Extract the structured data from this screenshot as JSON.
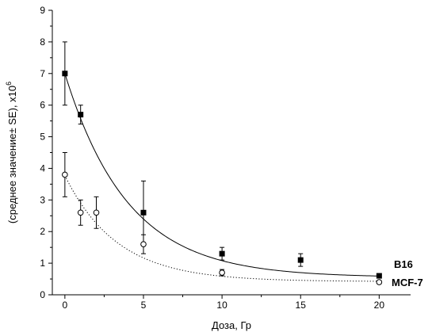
{
  "chart_data": {
    "type": "scatter",
    "title": "",
    "xlabel": "Доза, Гр",
    "ylabel": "(среднее значение± SE), x10",
    "ylabel_superscript": "6",
    "xlim": [
      -0.8,
      22
    ],
    "ylim": [
      0,
      9
    ],
    "xticks": [
      0,
      5,
      10,
      15,
      20
    ],
    "yticks": [
      0,
      1,
      2,
      3,
      4,
      5,
      6,
      7,
      8,
      9
    ],
    "grid": false,
    "legend": "none",
    "series": [
      {
        "name": "B16",
        "marker": "filled-square",
        "fit_line": "solid",
        "color": "#000000",
        "points": [
          {
            "x": 0,
            "y": 7.0,
            "err": 1.0
          },
          {
            "x": 1,
            "y": 5.7,
            "err": 0.3
          },
          {
            "x": 5,
            "y": 2.6,
            "err": 1.0
          },
          {
            "x": 10,
            "y": 1.3,
            "err": 0.2
          },
          {
            "x": 15,
            "y": 1.1,
            "err": 0.2
          },
          {
            "x": 20,
            "y": 0.6,
            "err": 0.05
          }
        ],
        "fit": {
          "a": 6.45,
          "k": 0.25,
          "c": 0.55
        }
      },
      {
        "name": "MCF-7",
        "marker": "open-circle",
        "fit_line": "dotted",
        "color": "#000000",
        "points": [
          {
            "x": 0,
            "y": 3.8,
            "err": 0.7
          },
          {
            "x": 1,
            "y": 2.6,
            "err": 0.4
          },
          {
            "x": 2,
            "y": 2.6,
            "err": 0.5
          },
          {
            "x": 5,
            "y": 1.6,
            "err": 0.3
          },
          {
            "x": 10,
            "y": 0.7,
            "err": 0.1
          },
          {
            "x": 20,
            "y": 0.4,
            "err": 0.05
          }
        ],
        "fit": {
          "a": 3.35,
          "k": 0.3,
          "c": 0.42
        }
      }
    ]
  }
}
